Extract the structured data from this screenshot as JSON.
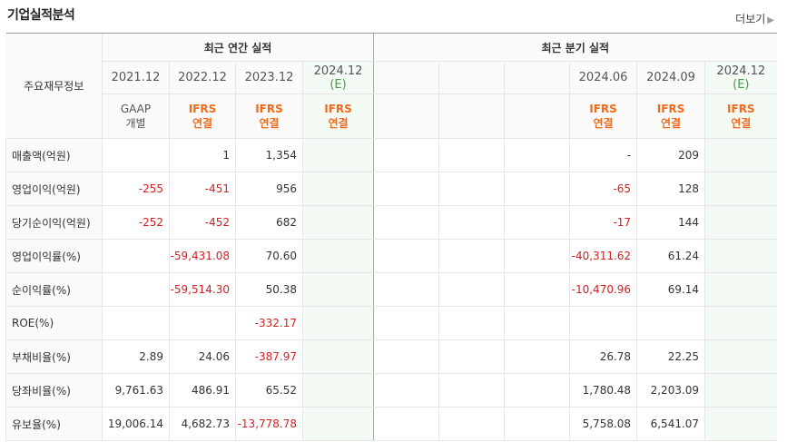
{
  "title": "기업실적분석",
  "more_label": "더보기",
  "header": {
    "row_label": "주요재무정보",
    "annual_group": "최근 연간 실적",
    "quarter_group": "최근 분기 실적",
    "annual_dates": [
      "2021.12",
      "2022.12",
      "2023.12",
      "2024.12"
    ],
    "annual_est": [
      "",
      "",
      "",
      "(E)"
    ],
    "annual_std1": [
      "GAAP",
      "IFRS",
      "IFRS",
      "IFRS"
    ],
    "annual_std2": [
      "개별",
      "연결",
      "연결",
      "연결"
    ],
    "quarter_dates": [
      "",
      "",
      "",
      "2024.06",
      "2024.09",
      "2024.12"
    ],
    "quarter_est": [
      "",
      "",
      "",
      "",
      "",
      "(E)"
    ],
    "quarter_std1": [
      "",
      "",
      "",
      "IFRS",
      "IFRS",
      "IFRS"
    ],
    "quarter_std2": [
      "",
      "",
      "",
      "연결",
      "연결",
      "연결"
    ]
  },
  "rows": [
    {
      "label": "매출액(억원)",
      "annual": [
        "",
        "1",
        "1,354",
        ""
      ],
      "quarter": [
        "",
        "",
        "",
        "-",
        "209",
        ""
      ]
    },
    {
      "label": "영업이익(억원)",
      "annual": [
        "-255",
        "-451",
        "956",
        ""
      ],
      "quarter": [
        "",
        "",
        "",
        "-65",
        "128",
        ""
      ]
    },
    {
      "label": "당기순이익(억원)",
      "annual": [
        "-252",
        "-452",
        "682",
        ""
      ],
      "quarter": [
        "",
        "",
        "",
        "-17",
        "144",
        ""
      ]
    },
    {
      "label": "영업이익률(%)",
      "annual": [
        "",
        "-59,431.08",
        "70.60",
        ""
      ],
      "quarter": [
        "",
        "",
        "",
        "-40,311.62",
        "61.24",
        ""
      ]
    },
    {
      "label": "순이익률(%)",
      "annual": [
        "",
        "-59,514.30",
        "50.38",
        ""
      ],
      "quarter": [
        "",
        "",
        "",
        "-10,470.96",
        "69.14",
        ""
      ]
    },
    {
      "label": "ROE(%)",
      "annual": [
        "",
        "",
        "-332.17",
        ""
      ],
      "quarter": [
        "",
        "",
        "",
        "",
        "",
        ""
      ]
    },
    {
      "label": "부채비율(%)",
      "annual": [
        "2.89",
        "24.06",
        "-387.97",
        ""
      ],
      "quarter": [
        "",
        "",
        "",
        "26.78",
        "22.25",
        ""
      ]
    },
    {
      "label": "당좌비율(%)",
      "annual": [
        "9,761.63",
        "486.91",
        "65.52",
        ""
      ],
      "quarter": [
        "",
        "",
        "",
        "1,780.48",
        "2,203.09",
        ""
      ]
    },
    {
      "label": "유보율(%)",
      "annual": [
        "19,006.14",
        "4,682.73",
        "-13,778.78",
        ""
      ],
      "quarter": [
        "",
        "",
        "",
        "5,758.08",
        "6,541.07",
        ""
      ]
    }
  ],
  "colors": {
    "negative": "#d42020",
    "ifrs": "#f26b1d",
    "estimate": "#4a9b4a"
  }
}
